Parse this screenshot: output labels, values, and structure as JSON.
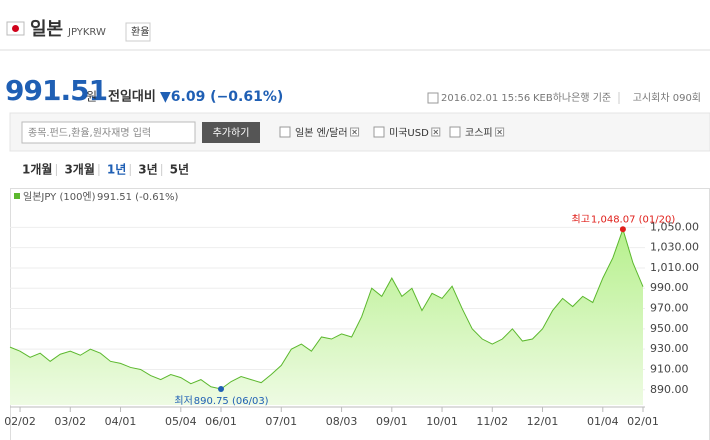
{
  "header": {
    "name": "일본",
    "code": "JPYKRW",
    "button": "환율"
  },
  "quote": {
    "price": "991.51",
    "unit": "원",
    "change_label": "전일대비",
    "change": "▼6.09 (−0.61%)",
    "timestamp": "2016.02.01 15:56",
    "source": "KEB하나은행 기준",
    "round": "고시회차 090회"
  },
  "search": {
    "placeholder": "종목.펀드,환율,원자재명 입력",
    "button": "추가하기",
    "compares": [
      "일본 엔/달러",
      "미국USD",
      "코스피"
    ]
  },
  "periods": [
    {
      "label": "1개월",
      "selected": false
    },
    {
      "label": "3개월",
      "selected": false
    },
    {
      "label": "1년",
      "selected": true
    },
    {
      "label": "3년",
      "selected": false
    },
    {
      "label": "5년",
      "selected": false
    }
  ],
  "chart_data": {
    "type": "area",
    "legend_value": "991.51 (-0.61%)",
    "categories": [
      null,
      "02/02",
      null,
      null,
      null,
      null,
      "03/02",
      null,
      null,
      null,
      null,
      "04/01",
      null,
      null,
      null,
      null,
      null,
      "05/04",
      null,
      null,
      null,
      "06/01",
      null,
      null,
      null,
      null,
      null,
      "07/01",
      null,
      null,
      null,
      null,
      null,
      "08/03",
      null,
      null,
      null,
      null,
      "09/01",
      null,
      null,
      null,
      null,
      "10/01",
      null,
      null,
      null,
      null,
      "11/02",
      null,
      null,
      null,
      null,
      "12/01",
      null,
      null,
      null,
      null,
      null,
      "01/04",
      null,
      null,
      null,
      "02/01"
    ],
    "series": [
      {
        "name": "일본JPY (100엔)",
        "color": "#5cb82e",
        "values": [
          932,
          928,
          922,
          926,
          918,
          925,
          928,
          924,
          930,
          926,
          918,
          916,
          912,
          910,
          904,
          900,
          905,
          902,
          896,
          900,
          893,
          890.75,
          898,
          903,
          900,
          897,
          905,
          914,
          930,
          935,
          928,
          942,
          940,
          945,
          942,
          962,
          990,
          982,
          1000,
          982,
          990,
          968,
          985,
          980,
          992,
          970,
          950,
          940,
          935,
          940,
          950,
          938,
          940,
          950,
          968,
          980,
          972,
          982,
          976,
          1000,
          1020,
          1048.07,
          1015,
          991.51
        ]
      }
    ],
    "ylim": [
      875,
      1072
    ],
    "yticks": [
      {
        "value": 890,
        "label": "890.00"
      },
      {
        "value": 910,
        "label": "910.00"
      },
      {
        "value": 930,
        "label": "930.00"
      },
      {
        "value": 950,
        "label": "950.00"
      },
      {
        "value": 970,
        "label": "970.00"
      },
      {
        "value": 990,
        "label": "990.00"
      },
      {
        "value": 1010,
        "label": "1,010.00"
      },
      {
        "value": 1030,
        "label": "1,030.00"
      },
      {
        "value": 1050,
        "label": "1,050.00"
      }
    ],
    "grid": true,
    "annotations": [
      {
        "index": 61,
        "label": "최고",
        "text": "1,048.07 (01/20)",
        "color": "#e0201b"
      },
      {
        "index": 21,
        "label": "최저",
        "text": "890.75 (06/03)",
        "color": "#1f5fb4"
      }
    ]
  }
}
